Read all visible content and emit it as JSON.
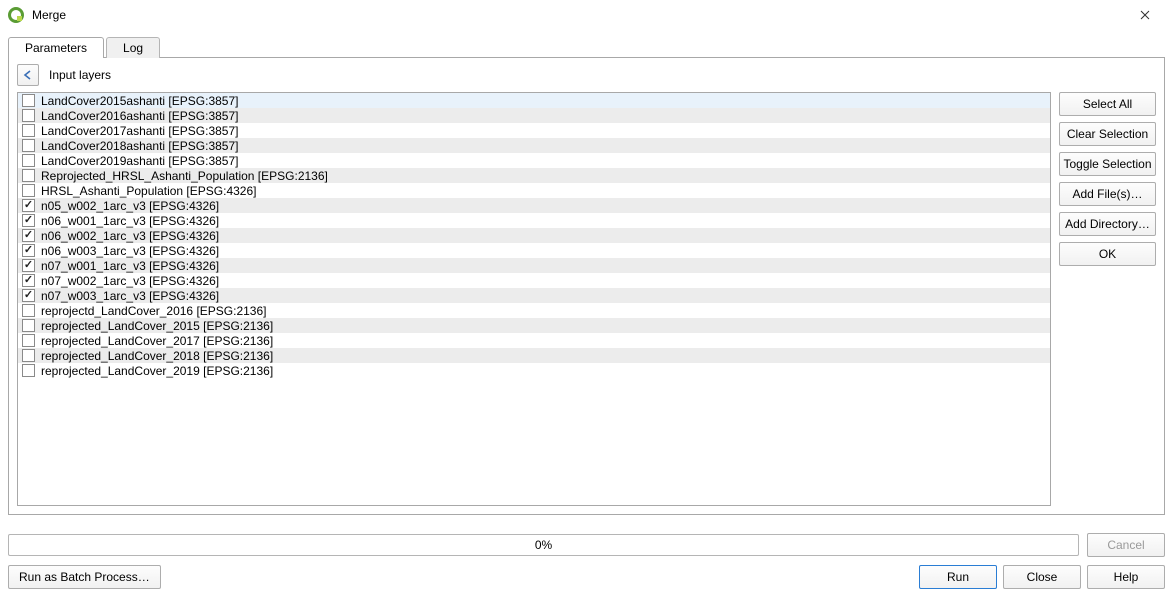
{
  "window": {
    "title": "Merge",
    "app_icon_color_1": "#5a9c34",
    "app_icon_color_2": "#b9d84c"
  },
  "tabs": {
    "parameters": "Parameters",
    "log": "Log",
    "active": "parameters"
  },
  "panel": {
    "title": "Input layers"
  },
  "side_buttons": {
    "select_all": "Select All",
    "clear_selection": "Clear Selection",
    "toggle_selection": "Toggle Selection",
    "add_files": "Add File(s)…",
    "add_directory": "Add Directory…",
    "ok": "OK"
  },
  "layers": [
    {
      "label": "LandCover2015ashanti [EPSG:3857]",
      "checked": false,
      "highlight": true
    },
    {
      "label": "LandCover2016ashanti [EPSG:3857]",
      "checked": false
    },
    {
      "label": "LandCover2017ashanti [EPSG:3857]",
      "checked": false
    },
    {
      "label": "LandCover2018ashanti [EPSG:3857]",
      "checked": false
    },
    {
      "label": "LandCover2019ashanti [EPSG:3857]",
      "checked": false
    },
    {
      "label": "Reprojected_HRSL_Ashanti_Population [EPSG:2136]",
      "checked": false
    },
    {
      "label": "HRSL_Ashanti_Population [EPSG:4326]",
      "checked": false
    },
    {
      "label": "n05_w002_1arc_v3 [EPSG:4326]",
      "checked": true
    },
    {
      "label": "n06_w001_1arc_v3 [EPSG:4326]",
      "checked": true
    },
    {
      "label": "n06_w002_1arc_v3 [EPSG:4326]",
      "checked": true
    },
    {
      "label": "n06_w003_1arc_v3 [EPSG:4326]",
      "checked": true
    },
    {
      "label": "n07_w001_1arc_v3 [EPSG:4326]",
      "checked": true
    },
    {
      "label": "n07_w002_1arc_v3 [EPSG:4326]",
      "checked": true
    },
    {
      "label": "n07_w003_1arc_v3 [EPSG:4326]",
      "checked": true
    },
    {
      "label": "reprojectd_LandCover_2016 [EPSG:2136]",
      "checked": false
    },
    {
      "label": "reprojected_LandCover_2015 [EPSG:2136]",
      "checked": false
    },
    {
      "label": "reprojected_LandCover_2017 [EPSG:2136]",
      "checked": false
    },
    {
      "label": "reprojected_LandCover_2018 [EPSG:2136]",
      "checked": false
    },
    {
      "label": "reprojected_LandCover_2019 [EPSG:2136]",
      "checked": false
    }
  ],
  "progress": {
    "text": "0%"
  },
  "footer": {
    "batch": "Run as Batch Process…",
    "cancel": "Cancel",
    "run": "Run",
    "close": "Close",
    "help": "Help"
  },
  "colors": {
    "row_alt": "#ececec",
    "row_highlight": "#e8f2fb"
  }
}
